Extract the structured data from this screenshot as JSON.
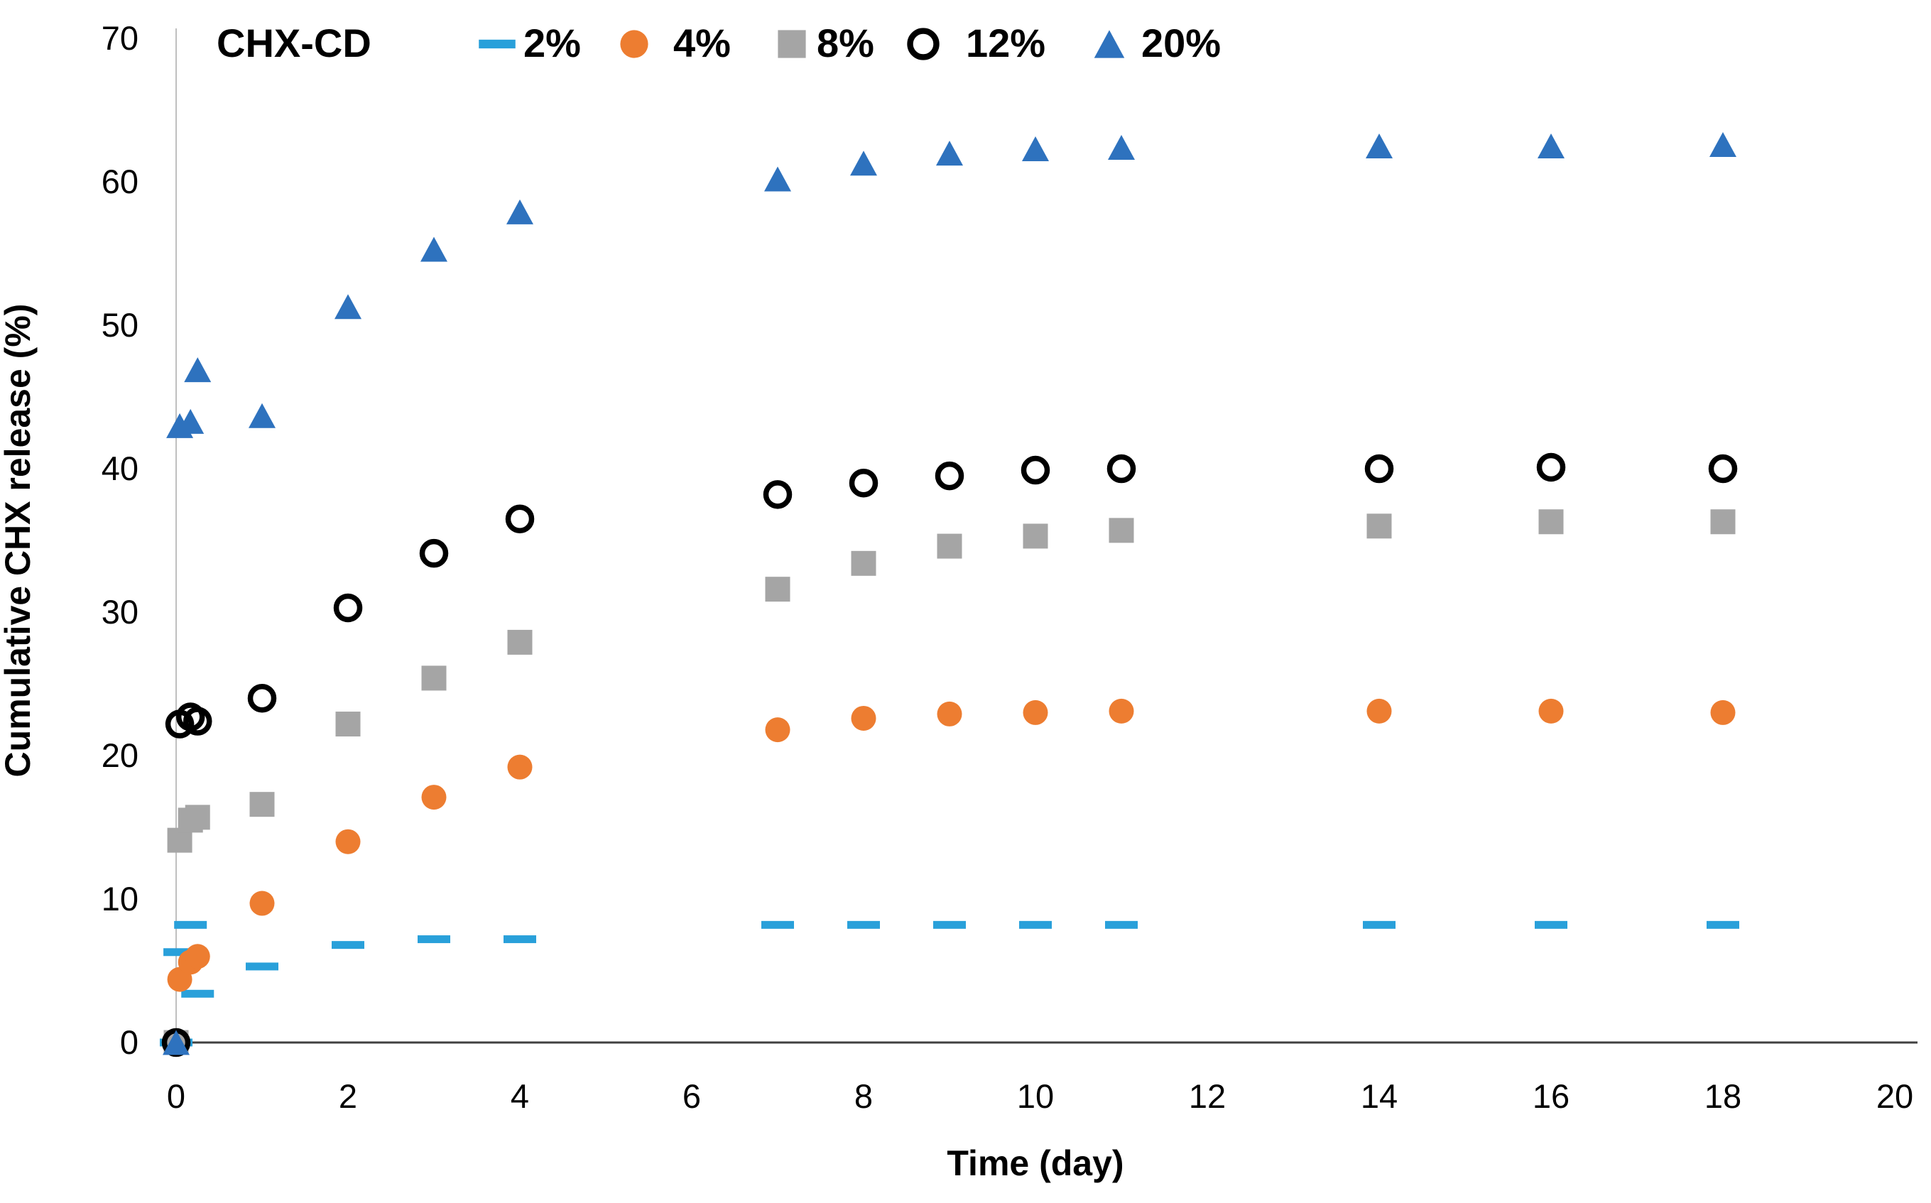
{
  "figure": {
    "legend_title": "CHX-CD",
    "x_axis_label": "Time (day)",
    "y_axis_label": "Cumulative CHX release (%)"
  },
  "chart_data": {
    "type": "scatter",
    "title": "CHX-CD",
    "xlabel": "Time (day)",
    "ylabel": "Cumulative CHX release (%)",
    "xlim": [
      0,
      20
    ],
    "ylim": [
      0,
      70
    ],
    "x_ticks": [
      "0",
      "2",
      "4",
      "6",
      "8",
      "10",
      "12",
      "14",
      "16",
      "18",
      "20"
    ],
    "x_tick_values": [
      0,
      2,
      4,
      6,
      8,
      10,
      12,
      14,
      16,
      18,
      20
    ],
    "y_ticks": [
      "0",
      "10",
      "20",
      "30",
      "40",
      "50",
      "60",
      "70"
    ],
    "y_tick_values": [
      0,
      10,
      20,
      30,
      40,
      50,
      60,
      70
    ],
    "grid": false,
    "legend_position": "top",
    "x": [
      0,
      0.042,
      0.167,
      0.25,
      1,
      2,
      3,
      4,
      7,
      8,
      9,
      10,
      11,
      14,
      16,
      18
    ],
    "series": [
      {
        "name": "2%",
        "marker": "dash",
        "color": "#29A0DA",
        "values": [
          0,
          6.3,
          8.2,
          3.4,
          5.3,
          6.8,
          7.2,
          7.2,
          8.2,
          8.2,
          8.2,
          8.2,
          8.2,
          8.2,
          8.2,
          8.2
        ]
      },
      {
        "name": "4%",
        "marker": "circle",
        "color": "#ED7D31",
        "values": [
          0,
          4.4,
          5.6,
          6.0,
          9.7,
          14.0,
          17.1,
          19.2,
          21.8,
          22.6,
          22.9,
          23.0,
          23.1,
          23.1,
          23.1,
          23.0
        ]
      },
      {
        "name": "8%",
        "marker": "square",
        "color": "#A5A5A5",
        "values": [
          0,
          14.1,
          15.5,
          15.7,
          16.6,
          22.2,
          25.4,
          27.9,
          31.6,
          33.4,
          34.6,
          35.3,
          35.7,
          36.0,
          36.3,
          36.3
        ]
      },
      {
        "name": "12%",
        "marker": "open-circle",
        "color": "#000000",
        "values": [
          0,
          22.2,
          22.7,
          22.4,
          24.0,
          30.3,
          34.1,
          36.5,
          38.2,
          39.0,
          39.5,
          39.9,
          40.0,
          40.0,
          40.1,
          40.0
        ]
      },
      {
        "name": "20%",
        "marker": "triangle",
        "color": "#2E72BE",
        "values": [
          0,
          43.0,
          43.3,
          46.9,
          43.7,
          51.3,
          55.3,
          57.9,
          60.2,
          61.3,
          62.0,
          62.3,
          62.4,
          62.5,
          62.5,
          62.6
        ]
      }
    ],
    "axis_colors": {
      "y_axis_line": "#BFBFBF",
      "x_axis_line": "#404040"
    }
  }
}
